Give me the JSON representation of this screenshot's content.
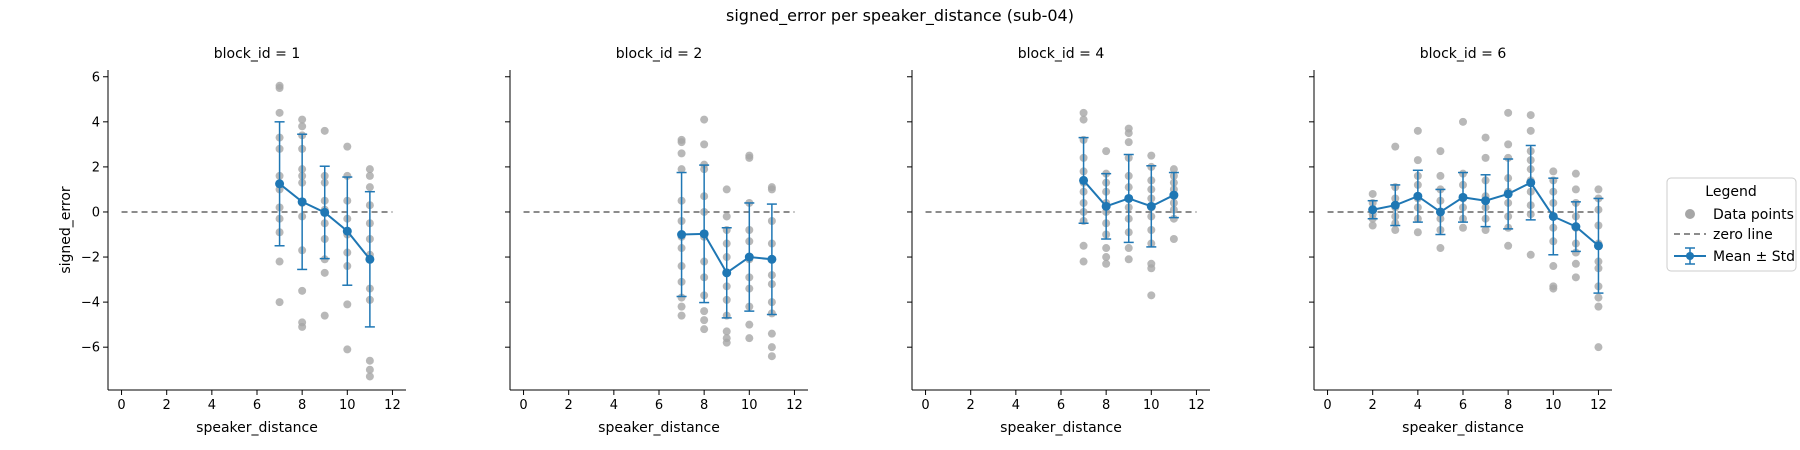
{
  "suptitle": "signed_error per speaker_distance (sub-04)",
  "chart_data": {
    "type": "scatter",
    "xlabel": "speaker_distance",
    "ylabel": "signed_error",
    "xlim": [
      -0.6,
      12.6
    ],
    "ylim": [
      -7.9,
      6.3
    ],
    "xticks": [
      0,
      2,
      4,
      6,
      8,
      10,
      12
    ],
    "yticks": [
      -6,
      -4,
      -2,
      0,
      2,
      4,
      6
    ],
    "grid": false,
    "zero_line": 0,
    "colors": {
      "points": "#a6a6a6",
      "mean": "#1f77b4",
      "zero": "#666666"
    },
    "legend": {
      "title": "Legend",
      "placement": "right",
      "entries": [
        "Data points",
        "zero line",
        "Mean ± Std"
      ]
    },
    "panels": [
      {
        "title": "block_id = 1",
        "points": [
          [
            7,
            5.6
          ],
          [
            7,
            5.5
          ],
          [
            7,
            4.4
          ],
          [
            7,
            3.3
          ],
          [
            7,
            2.8
          ],
          [
            7,
            1.6
          ],
          [
            7,
            1.0
          ],
          [
            7,
            0.2
          ],
          [
            7,
            -0.3
          ],
          [
            7,
            -0.9
          ],
          [
            7,
            -2.2
          ],
          [
            7,
            -4.0
          ],
          [
            8,
            4.1
          ],
          [
            8,
            3.8
          ],
          [
            8,
            3.4
          ],
          [
            8,
            2.8
          ],
          [
            8,
            1.9
          ],
          [
            8,
            1.6
          ],
          [
            8,
            1.3
          ],
          [
            8,
            0.4
          ],
          [
            8,
            -0.2
          ],
          [
            8,
            -1.7
          ],
          [
            8,
            -3.5
          ],
          [
            8,
            -4.9
          ],
          [
            8,
            -5.1
          ],
          [
            9,
            3.6
          ],
          [
            9,
            1.6
          ],
          [
            9,
            1.3
          ],
          [
            9,
            0.5
          ],
          [
            9,
            0.1
          ],
          [
            9,
            -0.5
          ],
          [
            9,
            -1.2
          ],
          [
            9,
            -2.1
          ],
          [
            9,
            -2.7
          ],
          [
            9,
            -4.6
          ],
          [
            10,
            2.9
          ],
          [
            10,
            1.6
          ],
          [
            10,
            0.5
          ],
          [
            10,
            -0.3
          ],
          [
            10,
            -1.0
          ],
          [
            10,
            -1.8
          ],
          [
            10,
            -2.4
          ],
          [
            10,
            -4.1
          ],
          [
            10,
            -6.1
          ],
          [
            11,
            1.9
          ],
          [
            11,
            1.6
          ],
          [
            11,
            1.1
          ],
          [
            11,
            0.3
          ],
          [
            11,
            -0.5
          ],
          [
            11,
            -1.2
          ],
          [
            11,
            -1.9
          ],
          [
            11,
            -3.4
          ],
          [
            11,
            -3.9
          ],
          [
            11,
            -6.6
          ],
          [
            11,
            -7.0
          ],
          [
            11,
            -7.3
          ]
        ],
        "mean": [
          [
            7,
            1.25
          ],
          [
            8,
            0.45
          ],
          [
            9,
            -0.02
          ],
          [
            10,
            -0.85
          ],
          [
            11,
            -2.1
          ]
        ],
        "std": [
          2.75,
          3.0,
          2.05,
          2.4,
          3.0
        ]
      },
      {
        "title": "block_id = 2",
        "points": [
          [
            7,
            3.2
          ],
          [
            7,
            3.1
          ],
          [
            7,
            2.6
          ],
          [
            7,
            1.9
          ],
          [
            7,
            0.5
          ],
          [
            7,
            -0.4
          ],
          [
            7,
            -1.1
          ],
          [
            7,
            -1.6
          ],
          [
            7,
            -2.4
          ],
          [
            7,
            -3.1
          ],
          [
            7,
            -3.8
          ],
          [
            7,
            -4.2
          ],
          [
            7,
            -4.6
          ],
          [
            8,
            4.1
          ],
          [
            8,
            3.0
          ],
          [
            8,
            2.1
          ],
          [
            8,
            1.9
          ],
          [
            8,
            0.7
          ],
          [
            8,
            0.0
          ],
          [
            8,
            -1.1
          ],
          [
            8,
            -2.2
          ],
          [
            8,
            -2.9
          ],
          [
            8,
            -3.7
          ],
          [
            8,
            -4.4
          ],
          [
            8,
            -4.8
          ],
          [
            8,
            -5.2
          ],
          [
            9,
            1.0
          ],
          [
            9,
            -0.2
          ],
          [
            9,
            -0.8
          ],
          [
            9,
            -1.4
          ],
          [
            9,
            -2.0
          ],
          [
            9,
            -2.7
          ],
          [
            9,
            -3.3
          ],
          [
            9,
            -3.9
          ],
          [
            9,
            -4.6
          ],
          [
            9,
            -5.3
          ],
          [
            9,
            -5.6
          ],
          [
            9,
            -5.8
          ],
          [
            10,
            2.5
          ],
          [
            10,
            2.4
          ],
          [
            10,
            0.4
          ],
          [
            10,
            -0.8
          ],
          [
            10,
            -1.3
          ],
          [
            10,
            -2.1
          ],
          [
            10,
            -2.9
          ],
          [
            10,
            -3.4
          ],
          [
            10,
            -4.2
          ],
          [
            10,
            -5.0
          ],
          [
            10,
            -5.6
          ],
          [
            11,
            1.1
          ],
          [
            11,
            1.0
          ],
          [
            11,
            -0.4
          ],
          [
            11,
            -1.4
          ],
          [
            11,
            -2.1
          ],
          [
            11,
            -2.8
          ],
          [
            11,
            -3.2
          ],
          [
            11,
            -4.0
          ],
          [
            11,
            -4.5
          ],
          [
            11,
            -5.4
          ],
          [
            11,
            -6.0
          ],
          [
            11,
            -6.4
          ]
        ],
        "mean": [
          [
            7,
            -1.0
          ],
          [
            8,
            -0.97
          ],
          [
            9,
            -2.7
          ],
          [
            10,
            -2.0
          ],
          [
            11,
            -2.1
          ]
        ],
        "std": [
          2.75,
          3.05,
          2.0,
          2.4,
          2.45
        ]
      },
      {
        "title": "block_id = 4",
        "points": [
          [
            7,
            4.4
          ],
          [
            7,
            4.1
          ],
          [
            7,
            3.2
          ],
          [
            7,
            2.4
          ],
          [
            7,
            1.8
          ],
          [
            7,
            1.3
          ],
          [
            7,
            0.9
          ],
          [
            7,
            0.4
          ],
          [
            7,
            0.0
          ],
          [
            7,
            -0.4
          ],
          [
            7,
            -1.5
          ],
          [
            7,
            -2.2
          ],
          [
            8,
            2.7
          ],
          [
            8,
            1.7
          ],
          [
            8,
            1.3
          ],
          [
            8,
            0.9
          ],
          [
            8,
            0.4
          ],
          [
            8,
            0.0
          ],
          [
            8,
            -0.5
          ],
          [
            8,
            -1.0
          ],
          [
            8,
            -1.6
          ],
          [
            8,
            -2.0
          ],
          [
            8,
            -2.3
          ],
          [
            9,
            3.7
          ],
          [
            9,
            3.5
          ],
          [
            9,
            3.1
          ],
          [
            9,
            2.4
          ],
          [
            9,
            1.6
          ],
          [
            9,
            1.1
          ],
          [
            9,
            0.6
          ],
          [
            9,
            0.2
          ],
          [
            9,
            -0.3
          ],
          [
            9,
            -0.9
          ],
          [
            9,
            -1.6
          ],
          [
            9,
            -2.1
          ],
          [
            10,
            2.5
          ],
          [
            10,
            2.0
          ],
          [
            10,
            1.4
          ],
          [
            10,
            1.0
          ],
          [
            10,
            0.6
          ],
          [
            10,
            0.2
          ],
          [
            10,
            -0.2
          ],
          [
            10,
            -0.8
          ],
          [
            10,
            -1.4
          ],
          [
            10,
            -2.3
          ],
          [
            10,
            -2.5
          ],
          [
            10,
            -3.7
          ],
          [
            11,
            1.9
          ],
          [
            11,
            1.6
          ],
          [
            11,
            1.3
          ],
          [
            11,
            1.0
          ],
          [
            11,
            0.7
          ],
          [
            11,
            0.4
          ],
          [
            11,
            0.1
          ],
          [
            11,
            -0.3
          ],
          [
            11,
            -1.2
          ]
        ],
        "mean": [
          [
            7,
            1.4
          ],
          [
            8,
            0.25
          ],
          [
            9,
            0.6
          ],
          [
            10,
            0.25
          ],
          [
            11,
            0.75
          ]
        ],
        "std": [
          1.9,
          1.45,
          1.95,
          1.8,
          1.0
        ]
      },
      {
        "title": "block_id = 6",
        "points": [
          [
            2,
            0.8
          ],
          [
            2,
            0.4
          ],
          [
            2,
            0.1
          ],
          [
            2,
            -0.1
          ],
          [
            2,
            -0.3
          ],
          [
            2,
            -0.6
          ],
          [
            3,
            2.9
          ],
          [
            3,
            1.1
          ],
          [
            3,
            0.6
          ],
          [
            3,
            0.2
          ],
          [
            3,
            -0.2
          ],
          [
            3,
            -0.5
          ],
          [
            3,
            -0.8
          ],
          [
            4,
            3.6
          ],
          [
            4,
            2.3
          ],
          [
            4,
            1.6
          ],
          [
            4,
            1.2
          ],
          [
            4,
            0.6
          ],
          [
            4,
            0.2
          ],
          [
            4,
            -0.3
          ],
          [
            4,
            -0.9
          ],
          [
            5,
            2.7
          ],
          [
            5,
            1.6
          ],
          [
            5,
            1.0
          ],
          [
            5,
            0.5
          ],
          [
            5,
            0.0
          ],
          [
            5,
            -0.3
          ],
          [
            5,
            -0.8
          ],
          [
            5,
            -1.6
          ],
          [
            6,
            4.0
          ],
          [
            6,
            1.7
          ],
          [
            6,
            1.2
          ],
          [
            6,
            0.6
          ],
          [
            6,
            0.2
          ],
          [
            6,
            -0.3
          ],
          [
            6,
            -0.7
          ],
          [
            7,
            3.3
          ],
          [
            7,
            2.4
          ],
          [
            7,
            1.4
          ],
          [
            7,
            0.7
          ],
          [
            7,
            0.2
          ],
          [
            7,
            -0.3
          ],
          [
            7,
            -0.8
          ],
          [
            8,
            4.4
          ],
          [
            8,
            3.0
          ],
          [
            8,
            2.4
          ],
          [
            8,
            1.5
          ],
          [
            8,
            0.9
          ],
          [
            8,
            0.4
          ],
          [
            8,
            -0.2
          ],
          [
            8,
            -0.7
          ],
          [
            8,
            -1.5
          ],
          [
            9,
            4.3
          ],
          [
            9,
            3.6
          ],
          [
            9,
            2.7
          ],
          [
            9,
            2.3
          ],
          [
            9,
            1.9
          ],
          [
            9,
            1.4
          ],
          [
            9,
            0.9
          ],
          [
            9,
            0.3
          ],
          [
            9,
            -0.1
          ],
          [
            9,
            -1.9
          ],
          [
            10,
            1.8
          ],
          [
            10,
            1.4
          ],
          [
            10,
            0.9
          ],
          [
            10,
            0.4
          ],
          [
            10,
            -0.2
          ],
          [
            10,
            -0.7
          ],
          [
            10,
            -1.3
          ],
          [
            10,
            -2.4
          ],
          [
            10,
            -3.3
          ],
          [
            10,
            -3.4
          ],
          [
            11,
            1.7
          ],
          [
            11,
            1.0
          ],
          [
            11,
            0.4
          ],
          [
            11,
            -0.2
          ],
          [
            11,
            -0.7
          ],
          [
            11,
            -1.4
          ],
          [
            11,
            -1.8
          ],
          [
            11,
            -2.3
          ],
          [
            11,
            -2.9
          ],
          [
            12,
            1.0
          ],
          [
            12,
            0.6
          ],
          [
            12,
            0.1
          ],
          [
            12,
            -0.6
          ],
          [
            12,
            -1.4
          ],
          [
            12,
            -2.2
          ],
          [
            12,
            -2.5
          ],
          [
            12,
            -3.3
          ],
          [
            12,
            -3.8
          ],
          [
            12,
            -4.2
          ],
          [
            12,
            -6.0
          ]
        ],
        "mean": [
          [
            2,
            0.1
          ],
          [
            3,
            0.3
          ],
          [
            4,
            0.7
          ],
          [
            5,
            0.0
          ],
          [
            6,
            0.65
          ],
          [
            7,
            0.5
          ],
          [
            8,
            0.8
          ],
          [
            9,
            1.3
          ],
          [
            10,
            -0.2
          ],
          [
            11,
            -0.65
          ],
          [
            12,
            -1.5
          ]
        ],
        "std": [
          0.4,
          0.9,
          1.15,
          1.0,
          1.1,
          1.15,
          1.55,
          1.65,
          1.7,
          1.1,
          2.1
        ]
      }
    ]
  }
}
